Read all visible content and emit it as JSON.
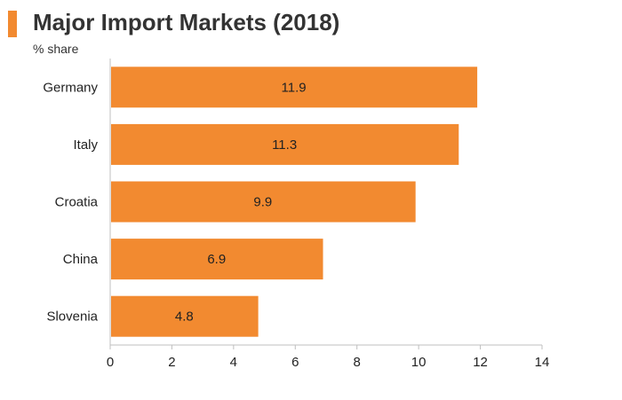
{
  "header": {
    "title": "Major Import Markets (2018)",
    "subtitle": "% share"
  },
  "colors": {
    "accent": "#f28a30",
    "bar": "#f28a30",
    "axis": "#bfbfbf",
    "text": "#222222"
  },
  "chart_data": {
    "type": "bar",
    "orientation": "horizontal",
    "categories": [
      "Germany",
      "Italy",
      "Croatia",
      "China",
      "Slovenia"
    ],
    "values": [
      11.9,
      11.3,
      9.9,
      6.9,
      4.8
    ],
    "value_labels": [
      "11.9",
      "11.3",
      "9.9",
      "6.9",
      "4.8"
    ],
    "x_ticks": [
      "0",
      "2",
      "4",
      "6",
      "8",
      "10",
      "12",
      "14"
    ],
    "xlim": [
      0,
      14
    ],
    "grid": false,
    "legend": "none"
  }
}
